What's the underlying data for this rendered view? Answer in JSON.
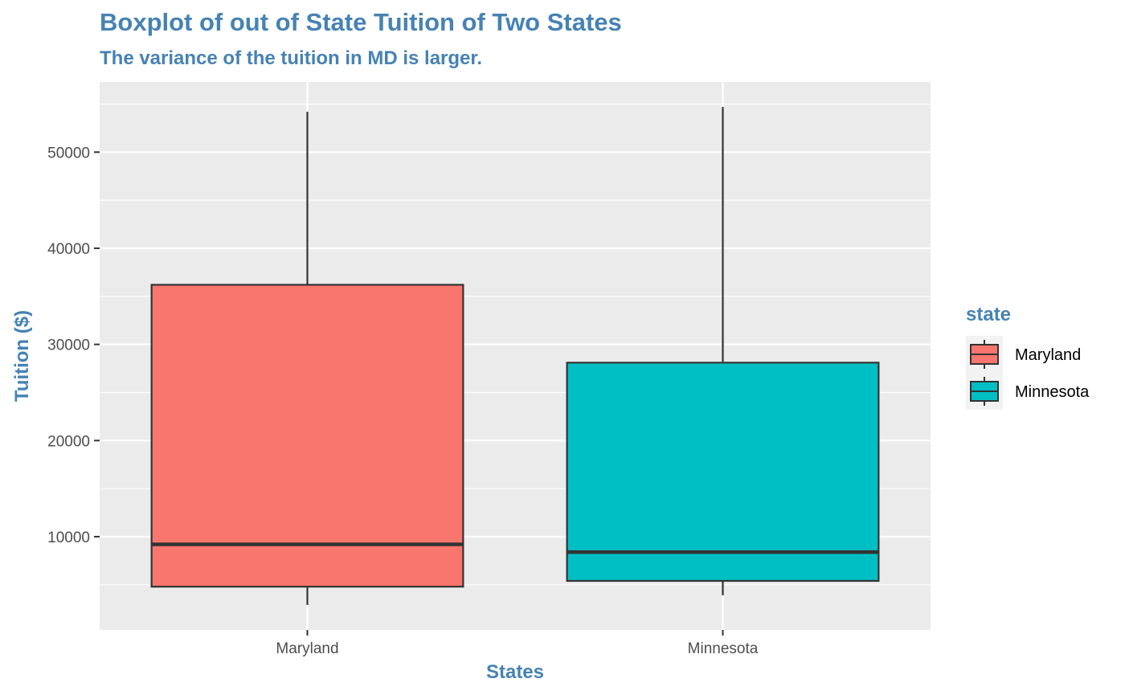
{
  "chart_data": {
    "type": "box",
    "title": "Boxplot of out of State Tuition of Two States",
    "subtitle": "The variance of the tuition in MD is larger.",
    "xlabel": "States",
    "ylabel": "Tuition ($)",
    "ylim": [
      300,
      57300
    ],
    "y_major_ticks": [
      10000,
      20000,
      30000,
      40000,
      50000
    ],
    "y_tick_labels": [
      "10000",
      "20000",
      "30000",
      "40000",
      "50000"
    ],
    "y_minor_ticks": [
      5000,
      15000,
      25000,
      35000,
      45000,
      55000
    ],
    "categories": [
      "Maryland",
      "Minnesota"
    ],
    "boxes": [
      {
        "category": "Maryland",
        "min": 2900,
        "q1": 4800,
        "median": 9200,
        "q3": 36200,
        "max": 54200,
        "color": "#F8766D"
      },
      {
        "category": "Minnesota",
        "min": 3900,
        "q1": 5400,
        "median": 8400,
        "q3": 28100,
        "max": 54700,
        "color": "#00BFC4"
      }
    ],
    "grid": true,
    "legend": {
      "title": "state",
      "position": "right",
      "entries": [
        {
          "label": "Maryland",
          "color": "#F8766D"
        },
        {
          "label": "Minnesota",
          "color": "#00BFC4"
        }
      ]
    },
    "colors": {
      "title": "#4682B4",
      "panel": "#EBEBEB",
      "grid": "#FFFFFF",
      "box_outline": "#333333"
    }
  }
}
